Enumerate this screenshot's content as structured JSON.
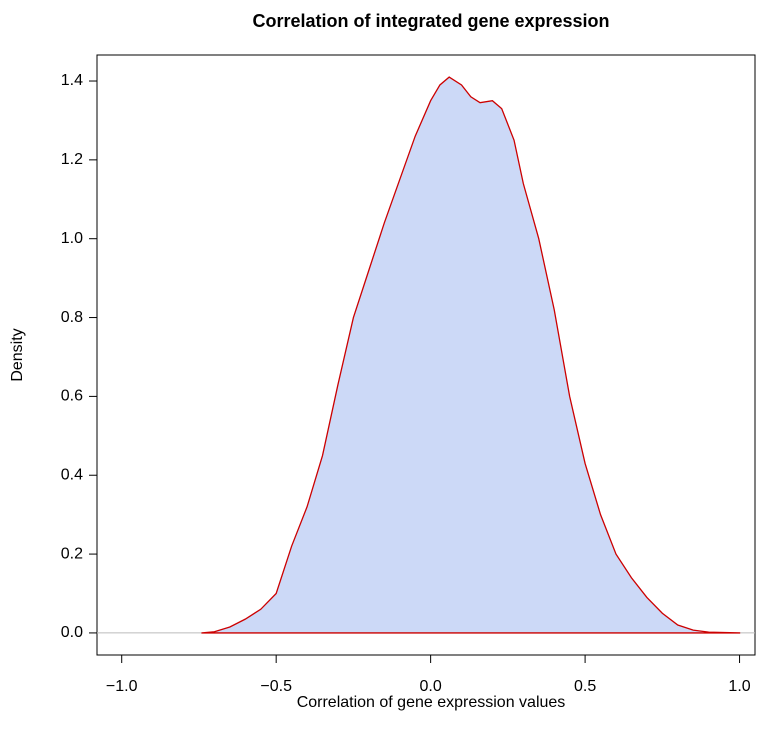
{
  "chart_data": {
    "type": "density",
    "title": "Correlation of integrated gene expression",
    "x_label": "Correlation of gene expression values",
    "y_label": "Density",
    "x": [
      -0.74,
      -0.7,
      -0.65,
      -0.6,
      -0.55,
      -0.5,
      -0.45,
      -0.4,
      -0.35,
      -0.3,
      -0.25,
      -0.2,
      -0.15,
      -0.1,
      -0.05,
      0,
      0.03,
      0.06,
      0.1,
      0.13,
      0.16,
      0.2,
      0.23,
      0.27,
      0.3,
      0.35,
      0.4,
      0.45,
      0.5,
      0.55,
      0.6,
      0.65,
      0.7,
      0.75,
      0.8,
      0.85,
      0.9,
      1.0
    ],
    "y": [
      0,
      0.003,
      0.015,
      0.035,
      0.06,
      0.1,
      0.22,
      0.32,
      0.45,
      0.63,
      0.8,
      0.92,
      1.04,
      1.15,
      1.26,
      1.35,
      1.39,
      1.41,
      1.39,
      1.36,
      1.345,
      1.35,
      1.33,
      1.25,
      1.14,
      1.0,
      0.82,
      0.6,
      0.43,
      0.3,
      0.2,
      0.14,
      0.09,
      0.05,
      0.02,
      0.007,
      0.002,
      0
    ],
    "line_color": "#cc0000",
    "fill_color": "#ccd9f7",
    "baseline_color": "#bbbbbb",
    "xlim": [
      -1.08,
      1.05
    ],
    "ylim": [
      -0.056,
      1.466
    ],
    "xticks": [
      {
        "value": -1,
        "label": "−1.0"
      },
      {
        "value": -0.5,
        "label": "−0.5"
      },
      {
        "value": 0,
        "label": "0.0"
      },
      {
        "value": 0.5,
        "label": "0.5"
      },
      {
        "value": 1,
        "label": "1.0"
      }
    ],
    "yticks": [
      {
        "value": 0,
        "label": "0.0"
      },
      0.2,
      0.4,
      0.6,
      0.8,
      {
        "value": 1,
        "label": "1.0"
      },
      1.2,
      1.4
    ],
    "grid": false
  }
}
